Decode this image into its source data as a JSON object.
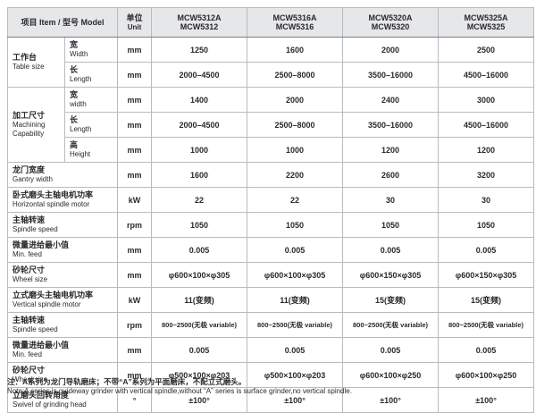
{
  "colors": {
    "header_bg": "#e6e7e9",
    "border_main": "#9aa0a5",
    "border_sub": "#c9cdd1",
    "border_outer": "#878d93",
    "text": "#2a2a2c"
  },
  "table": {
    "header": {
      "item_label": "项目 Item / 型号 Model",
      "unit_zh": "单位",
      "unit_en": "Unit",
      "models": [
        {
          "line1": "MCW5312A",
          "line2": "MCW5312"
        },
        {
          "line1": "MCW5316A",
          "line2": "MCW5316"
        },
        {
          "line1": "MCW5320A",
          "line2": "MCW5320"
        },
        {
          "line1": "MCW5325A",
          "line2": "MCW5325"
        }
      ]
    },
    "rows": [
      {
        "group": {
          "zh": "工作台",
          "en": "Table size",
          "span": 2
        },
        "sub": {
          "zh": "宽",
          "en": "Width"
        },
        "unit": "mm",
        "values": [
          "1250",
          "1600",
          "2000",
          "2500"
        ]
      },
      {
        "sub": {
          "zh": "长",
          "en": "Length"
        },
        "unit": "mm",
        "sub_sep": true,
        "values": [
          "2000–4500",
          "2500–8000",
          "3500–16000",
          "4500–16000"
        ]
      },
      {
        "group": {
          "zh": "加工尺寸",
          "en": "Machining Capability",
          "span": 3
        },
        "sub": {
          "zh": "宽",
          "en": "width"
        },
        "unit": "mm",
        "values": [
          "1400",
          "2000",
          "2400",
          "3000"
        ]
      },
      {
        "sub": {
          "zh": "长",
          "en": "Length"
        },
        "unit": "mm",
        "sub_sep": true,
        "values": [
          "2000–4500",
          "2500–8000",
          "3500–16000",
          "4500–16000"
        ]
      },
      {
        "sub": {
          "zh": "高",
          "en": "Height"
        },
        "unit": "mm",
        "sub_sep": true,
        "values": [
          "1000",
          "1000",
          "1200",
          "1200"
        ]
      },
      {
        "label": {
          "zh": "龙门宽度",
          "en": "Gantry width"
        },
        "unit": "mm",
        "values": [
          "1600",
          "2200",
          "2600",
          "3200"
        ]
      },
      {
        "label": {
          "zh": "卧式磨头主轴电机功率",
          "en": "Horizontal spindle motor"
        },
        "unit": "kW",
        "values": [
          "22",
          "22",
          "30",
          "30"
        ]
      },
      {
        "label": {
          "zh": "主轴转速",
          "en": "Spindle speed"
        },
        "unit": "rpm",
        "values": [
          "1050",
          "1050",
          "1050",
          "1050"
        ]
      },
      {
        "label": {
          "zh": "微量进给最小值",
          "en": "Min.  feed"
        },
        "unit": "mm",
        "values": [
          "0.005",
          "0.005",
          "0.005",
          "0.005"
        ]
      },
      {
        "label": {
          "zh": "砂轮尺寸",
          "en": "Wheel size"
        },
        "unit": "mm",
        "values": [
          "φ600×100×φ305",
          "φ600×100×φ305",
          "φ600×150×φ305",
          "φ600×150×φ305"
        ]
      },
      {
        "label": {
          "zh": "立式磨头主轴电机功率",
          "en": "Vertical spindle motor"
        },
        "unit": "kW",
        "values": [
          "11(变频)",
          "11(变频)",
          "15(变频)",
          "15(变频)"
        ]
      },
      {
        "label": {
          "zh": "主轴转速",
          "en": "Spindle speed"
        },
        "unit": "rpm",
        "values": [
          "800~2500(无极 variable)",
          "800~2500(无极 variable)",
          "800~2500(无极 variable)",
          "800~2500(无极 variable)"
        ]
      },
      {
        "label": {
          "zh": "微量进给最小值",
          "en": "Min.  feed"
        },
        "unit": "mm",
        "values": [
          "0.005",
          "0.005",
          "0.005",
          "0.005"
        ]
      },
      {
        "label": {
          "zh": "砂轮尺寸",
          "en": "Wheel  size"
        },
        "unit": "mm",
        "values": [
          "φ500×100×φ203",
          "φ500×100×φ203",
          "φ600×100×φ250",
          "φ600×100×φ250"
        ]
      },
      {
        "label": {
          "zh": "立磨头回转角度",
          "en": "Swivel of grinding head"
        },
        "unit": "°",
        "values": [
          "±100°",
          "±100°",
          "±100°",
          "±100°"
        ]
      }
    ]
  },
  "note": {
    "zh": "注：A系列为龙门导轨磨床；不带“A”系列为平面磨床，不配立式磨头。",
    "en": "Note:A series is guideway grinder with vertical spindle,without “A” series is surface grinder,no vertical spindle."
  }
}
